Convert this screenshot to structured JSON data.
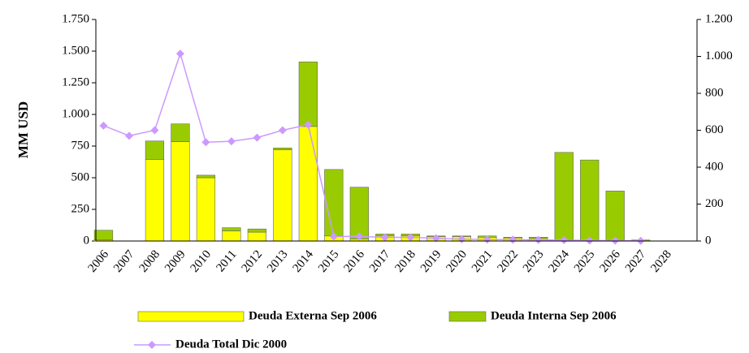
{
  "chart_data": {
    "type": "bar",
    "stacked": true,
    "y_label": "MM USD",
    "categories": [
      "2006",
      "2007",
      "2008",
      "2009",
      "2010",
      "2011",
      "2012",
      "2013",
      "2014",
      "2015",
      "2016",
      "2017",
      "2018",
      "2019",
      "2020",
      "2021",
      "2022",
      "2023",
      "2024",
      "2025",
      "2026",
      "2027",
      "2028"
    ],
    "series": [
      {
        "name": "Deuda Externa Sep 2006",
        "type": "bar",
        "color": "#ffff00",
        "values": [
          10,
          0,
          645,
          785,
          500,
          80,
          70,
          720,
          905,
          40,
          15,
          40,
          40,
          35,
          35,
          30,
          25,
          20,
          10,
          5,
          5,
          0,
          0
        ]
      },
      {
        "name": "Deuda Interna Sep 2006",
        "type": "bar",
        "color": "#99cc00",
        "values": [
          75,
          0,
          145,
          140,
          20,
          25,
          25,
          15,
          510,
          525,
          410,
          15,
          15,
          5,
          5,
          10,
          5,
          10,
          690,
          635,
          390,
          8,
          0
        ]
      },
      {
        "name": "Deuda Total Dic 2000",
        "type": "line",
        "axis": "y2",
        "color": "#cc99ff",
        "values": [
          625,
          570,
          600,
          1015,
          535,
          540,
          560,
          600,
          630,
          25,
          25,
          20,
          20,
          15,
          10,
          8,
          7,
          6,
          5,
          3,
          2,
          1,
          null
        ]
      }
    ],
    "ylim": [
      0,
      1750
    ],
    "yticks": [
      0,
      250,
      500,
      750,
      {
        "value": 1000,
        "label": "1.000"
      },
      {
        "value": 1250,
        "label": "1.250"
      },
      {
        "value": 1500,
        "label": "1.500"
      },
      {
        "value": 1750,
        "label": "1.750"
      }
    ],
    "y2lim": [
      0,
      1200
    ],
    "y2ticks": [
      0,
      200,
      400,
      600,
      800,
      {
        "value": 1000,
        "label": "1.000"
      },
      {
        "value": 1200,
        "label": "1.200"
      }
    ]
  }
}
